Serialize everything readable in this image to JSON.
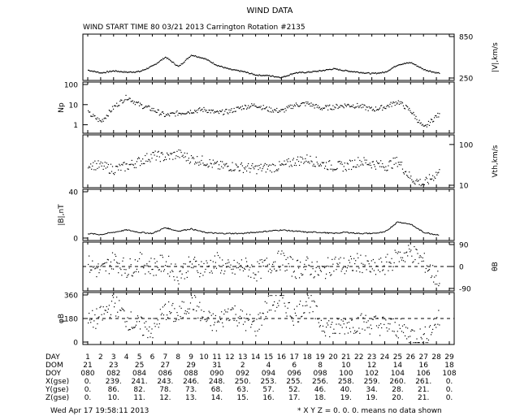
{
  "header": {
    "title": "WIND DATA",
    "subtitle": "WIND START TIME  80 03/21 2013 Carrington Rotation #2135"
  },
  "footer": {
    "timestamp": "Wed Apr 17 19:58:11 2013",
    "note": "* X Y Z = 0. 0. 0. means no data shown"
  },
  "table": {
    "labels": [
      "DAY",
      "DOM",
      "DOY",
      "X(gse)",
      "Y(gse)",
      "Z(gse)"
    ],
    "day": [
      "1",
      "2",
      "3",
      "4",
      "5",
      "6",
      "7",
      "8",
      "9",
      "10",
      "11",
      "12",
      "13",
      "14",
      "15",
      "16",
      "17",
      "18",
      "19",
      "20",
      "21",
      "22",
      "23",
      "24",
      "25",
      "26",
      "27",
      "28",
      "29"
    ],
    "dom": [
      "21",
      "23",
      "25",
      "27",
      "29",
      "31",
      "2",
      "4",
      "6",
      "8",
      "10",
      "12",
      "14",
      "16",
      "18"
    ],
    "doy": [
      "080",
      "082",
      "084",
      "086",
      "088",
      "090",
      "092",
      "094",
      "096",
      "098",
      "100",
      "102",
      "104",
      "106",
      "108"
    ],
    "xgse": [
      "0.",
      "239.",
      "241.",
      "243.",
      "246.",
      "248.",
      "250.",
      "253.",
      "255.",
      "256.",
      "258.",
      "259.",
      "260.",
      "261.",
      "0."
    ],
    "ygse": [
      "0.",
      "86.",
      "82.",
      "78.",
      "73.",
      "68.",
      "63.",
      "57.",
      "52.",
      "46.",
      "40.",
      "34.",
      "28.",
      "21.",
      "0."
    ],
    "zgse": [
      "0.",
      "10.",
      "11.",
      "12.",
      "13.",
      "14.",
      "15.",
      "16.",
      "17.",
      "18.",
      "19.",
      "19.",
      "20.",
      "21.",
      "0."
    ]
  },
  "chart_data": [
    {
      "type": "scatter",
      "panel": "speed",
      "ylabel": "|V|,km/s",
      "yticks": [
        "850",
        "250"
      ],
      "ylim": [
        250,
        850
      ],
      "x": [
        1,
        2,
        3,
        4,
        5,
        6,
        7,
        8,
        9,
        10,
        11,
        12,
        13,
        14,
        15,
        16,
        17,
        18,
        19,
        20,
        21,
        22,
        23,
        24,
        25,
        26,
        27,
        28,
        29
      ],
      "values": [
        370,
        330,
        360,
        340,
        350,
        430,
        560,
        420,
        590,
        540,
        440,
        380,
        350,
        300,
        290,
        265,
        330,
        340,
        360,
        390,
        360,
        340,
        320,
        340,
        450,
        480,
        380,
        330,
        330
      ]
    },
    {
      "type": "scatter",
      "panel": "density",
      "ylabel": "Np",
      "yticks": [
        "100",
        "10",
        "1"
      ],
      "scale": "log",
      "ylim": [
        0.5,
        100
      ],
      "x": [
        1,
        2,
        3,
        4,
        5,
        6,
        7,
        8,
        9,
        10,
        11,
        12,
        13,
        14,
        15,
        16,
        17,
        18,
        19,
        20,
        21,
        22,
        23,
        24,
        25,
        26,
        27,
        28,
        29
      ],
      "values": [
        4,
        1.5,
        8,
        25,
        10,
        6,
        3,
        4,
        5,
        6,
        4,
        5,
        8,
        10,
        6,
        5,
        10,
        12,
        7,
        8,
        10,
        9,
        6,
        8,
        15,
        5,
        0.7,
        3,
        3
      ]
    },
    {
      "type": "scatter",
      "panel": "thermal-speed",
      "ylabel": "Vth,km/s",
      "yticks": [
        "100",
        "10"
      ],
      "scale": "log",
      "ylim": [
        10,
        150
      ],
      "x": [
        1,
        2,
        3,
        4,
        5,
        6,
        7,
        8,
        9,
        10,
        11,
        12,
        13,
        14,
        15,
        16,
        17,
        18,
        19,
        20,
        21,
        22,
        23,
        24,
        25,
        26,
        27,
        28,
        29
      ],
      "values": [
        35,
        30,
        25,
        30,
        40,
        55,
        50,
        60,
        45,
        40,
        30,
        30,
        28,
        26,
        28,
        30,
        40,
        45,
        35,
        30,
        30,
        40,
        35,
        30,
        40,
        15,
        11,
        20,
        25
      ]
    },
    {
      "type": "line",
      "panel": "magnetic-field",
      "ylabel": "|B|,nT",
      "yticks": [
        "40",
        "0"
      ],
      "ylim": [
        0,
        40
      ],
      "x": [
        1,
        2,
        3,
        4,
        5,
        6,
        7,
        8,
        9,
        10,
        11,
        12,
        13,
        14,
        15,
        16,
        17,
        18,
        19,
        20,
        21,
        22,
        23,
        24,
        25,
        26,
        27,
        28,
        29
      ],
      "values": [
        4,
        3,
        5,
        7,
        5,
        4,
        9,
        6,
        8,
        5,
        4,
        4,
        4,
        5,
        6,
        7,
        6,
        5,
        5,
        4,
        5,
        4,
        4,
        5,
        14,
        12,
        5,
        3,
        3
      ]
    },
    {
      "type": "scatter",
      "panel": "theta-b",
      "ylabel": "θB",
      "yticks": [
        "90",
        "0",
        "-90"
      ],
      "ylim": [
        -90,
        90
      ],
      "x": [
        1,
        2,
        3,
        4,
        5,
        6,
        7,
        8,
        9,
        10,
        11,
        12,
        13,
        14,
        15,
        16,
        17,
        18,
        19,
        20,
        21,
        22,
        23,
        24,
        25,
        26,
        27,
        28,
        29
      ],
      "values": [
        10,
        -20,
        30,
        -10,
        20,
        0,
        15,
        -30,
        10,
        -5,
        20,
        -15,
        5,
        -20,
        10,
        30,
        -10,
        5,
        -25,
        15,
        0,
        20,
        -10,
        5,
        40,
        60,
        20,
        -50,
        0
      ]
    },
    {
      "type": "scatter",
      "panel": "phi-b",
      "ylabel": "φB",
      "yticks": [
        "360",
        "180",
        "0"
      ],
      "ylim": [
        0,
        360
      ],
      "x": [
        1,
        2,
        3,
        4,
        5,
        6,
        7,
        8,
        9,
        10,
        11,
        12,
        13,
        14,
        15,
        16,
        17,
        18,
        19,
        20,
        21,
        22,
        23,
        24,
        25,
        26,
        27,
        28,
        29
      ],
      "values": [
        150,
        200,
        300,
        180,
        120,
        100,
        250,
        200,
        330,
        180,
        140,
        250,
        170,
        120,
        300,
        320,
        200,
        330,
        150,
        100,
        140,
        150,
        140,
        130,
        110,
        60,
        30,
        170,
        170
      ]
    }
  ]
}
